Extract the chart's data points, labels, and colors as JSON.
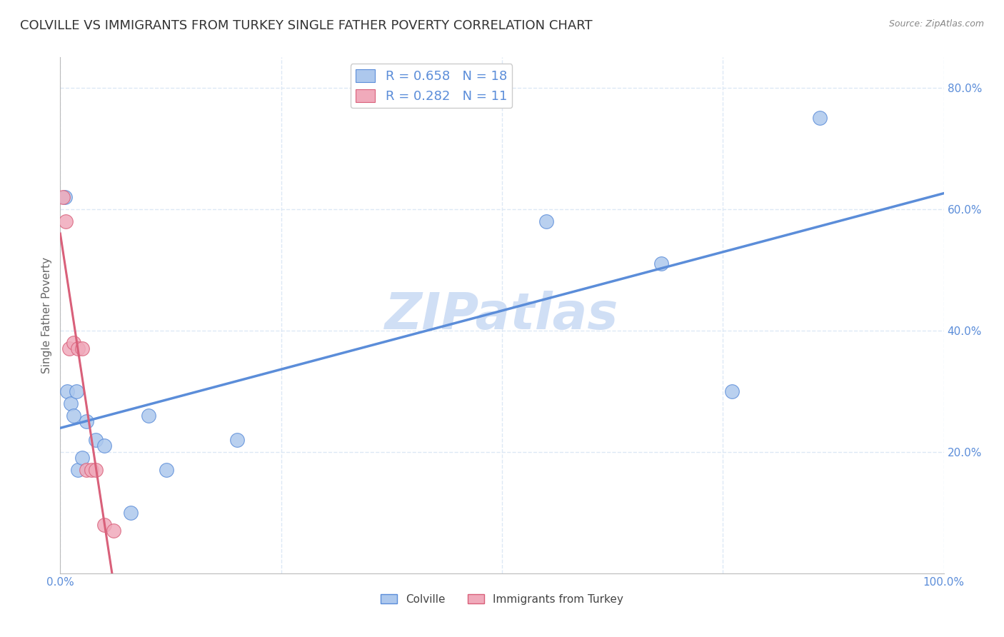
{
  "title": "COLVILLE VS IMMIGRANTS FROM TURKEY SINGLE FATHER POVERTY CORRELATION CHART",
  "source": "Source: ZipAtlas.com",
  "ylabel": "Single Father Poverty",
  "legend_colville": "Colville",
  "legend_turkey": "Immigrants from Turkey",
  "colville_R": 0.658,
  "colville_N": 18,
  "turkey_R": 0.282,
  "turkey_N": 11,
  "colville_x": [
    0.5,
    0.8,
    1.2,
    1.5,
    1.8,
    2.0,
    2.5,
    3.0,
    4.0,
    5.0,
    8.0,
    10.0,
    12.0,
    20.0,
    55.0,
    68.0,
    76.0,
    86.0
  ],
  "colville_y": [
    0.62,
    0.3,
    0.28,
    0.26,
    0.3,
    0.17,
    0.19,
    0.25,
    0.22,
    0.21,
    0.1,
    0.26,
    0.17,
    0.22,
    0.58,
    0.51,
    0.3,
    0.75
  ],
  "turkey_x": [
    0.3,
    0.6,
    1.0,
    1.5,
    2.0,
    2.5,
    3.0,
    3.5,
    4.0,
    5.0,
    6.0
  ],
  "turkey_y": [
    0.62,
    0.58,
    0.37,
    0.38,
    0.37,
    0.37,
    0.17,
    0.17,
    0.17,
    0.08,
    0.07
  ],
  "colville_color": "#adc8ed",
  "turkey_color": "#f0aabb",
  "colville_line_color": "#5b8dd9",
  "turkey_line_color": "#d9607a",
  "turkey_dashed_color": "#c8c8c8",
  "title_color": "#333333",
  "tick_color": "#5b8dd9",
  "background_color": "#ffffff",
  "watermark": "ZIPatlas",
  "watermark_color": "#d0dff5",
  "xlim": [
    0.0,
    100.0
  ],
  "ylim": [
    0.0,
    0.85
  ],
  "right_yticks": [
    0.2,
    0.4,
    0.6,
    0.8
  ],
  "right_yticklabels": [
    "20.0%",
    "40.0%",
    "60.0%",
    "80.0%"
  ],
  "grid_color": "#dce8f5",
  "title_fontsize": 13,
  "axis_label_fontsize": 11,
  "tick_fontsize": 11,
  "legend_fontsize": 13
}
